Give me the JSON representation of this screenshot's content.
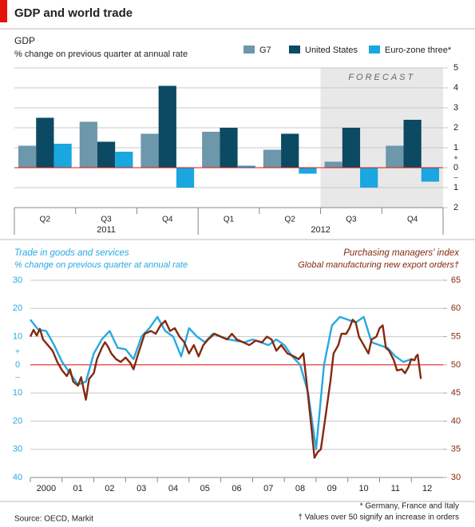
{
  "title": "GDP and world trade",
  "source": "Source: OECD, Markit",
  "footnotes": [
    "* Germany, France and Italy",
    "† Values over 50 signify an increase in orders"
  ],
  "chart_data": [
    {
      "type": "bar",
      "title": "GDP",
      "subtitle": "% change on previous quarter at annual rate",
      "categories": [
        "Q2",
        "Q3",
        "Q4",
        "Q1",
        "Q2",
        "Q3",
        "Q4"
      ],
      "year_labels": [
        "2011",
        "2012"
      ],
      "annotation": "FORECAST",
      "series": [
        {
          "name": "G7",
          "color": "#6d97ab",
          "values": [
            1.1,
            2.3,
            1.7,
            1.8,
            0.9,
            0.3,
            1.1
          ]
        },
        {
          "name": "United States",
          "color": "#0c4a63",
          "values": [
            2.5,
            1.3,
            4.1,
            2.0,
            1.7,
            2.0,
            2.4
          ]
        },
        {
          "name": "Euro-zone three*",
          "color": "#1aa6df",
          "values": [
            1.2,
            0.8,
            -1.0,
            0.1,
            -0.3,
            -1.0,
            -0.7
          ]
        }
      ],
      "ylim": [
        -2,
        5
      ],
      "yticks": [
        {
          "value": -2,
          "label": "2"
        },
        {
          "value": -1,
          "label": "1"
        },
        0,
        1,
        2,
        3,
        4,
        5
      ],
      "signs": [
        "+",
        "–"
      ],
      "grid": true
    },
    {
      "type": "line",
      "y_title": "% change on previous quarter at annual rate",
      "y2_title": "Global manufacturing new export orders†",
      "xlim": [
        2000,
        2013
      ],
      "xticks": [
        {
          "value": 2000,
          "label": "2000"
        },
        {
          "value": 2001,
          "label": "01"
        },
        {
          "value": 2002,
          "label": "02"
        },
        {
          "value": 2003,
          "label": "03"
        },
        {
          "value": 2004,
          "label": "04"
        },
        {
          "value": 2005,
          "label": "05"
        },
        {
          "value": 2006,
          "label": "06"
        },
        {
          "value": 2007,
          "label": "07"
        },
        {
          "value": 2008,
          "label": "08"
        },
        {
          "value": 2009,
          "label": "09"
        },
        {
          "value": 2010,
          "label": "10"
        },
        {
          "value": 2011,
          "label": "11"
        },
        {
          "value": 2012,
          "label": "12"
        }
      ],
      "ylim": [
        -40,
        30
      ],
      "yticks": [
        {
          "value": -40,
          "label": "40"
        },
        {
          "value": -30,
          "label": "30"
        },
        {
          "value": -20,
          "label": "20"
        },
        {
          "value": -10,
          "label": "10"
        },
        0,
        10,
        20,
        30
      ],
      "y2lim": [
        30,
        65
      ],
      "y2ticks": [
        30,
        35,
        40,
        45,
        50,
        55,
        60,
        65
      ],
      "signs": [
        "+",
        "–"
      ],
      "grid": true,
      "series": [
        {
          "name": "Trade in goods and services",
          "color": "#27a9e1",
          "x": [
            2000,
            2000.25,
            2000.5,
            2000.75,
            2001,
            2001.25,
            2001.5,
            2001.75,
            2002,
            2002.25,
            2002.5,
            2002.75,
            2003,
            2003.25,
            2003.5,
            2003.75,
            2004,
            2004.25,
            2004.5,
            2004.75,
            2005,
            2005.25,
            2005.5,
            2005.75,
            2006,
            2006.25,
            2006.5,
            2006.75,
            2007,
            2007.25,
            2007.5,
            2007.75,
            2008,
            2008.25,
            2008.5,
            2008.75,
            2009,
            2009.25,
            2009.5,
            2009.75,
            2010,
            2010.25,
            2010.5,
            2010.75,
            2011,
            2011.25,
            2011.5,
            2011.75,
            2012
          ],
          "values": [
            16,
            12.5,
            12,
            7,
            1,
            -3,
            -7,
            -6,
            4,
            9,
            12,
            6,
            5.5,
            2,
            10,
            13,
            17,
            12,
            10,
            3,
            13,
            10,
            8,
            11,
            10,
            9,
            8.5,
            8,
            9,
            8,
            7,
            9,
            7,
            3,
            0,
            -10,
            -30,
            0,
            14,
            17,
            16,
            15,
            17,
            8,
            7,
            6,
            3,
            1,
            2
          ]
        },
        {
          "name": "Purchasing managers' index",
          "color": "#84290f",
          "axis": "y2",
          "x": [
            2000,
            2000.1,
            2000.2,
            2000.3,
            2000.4,
            2000.55,
            2000.7,
            2000.85,
            2001,
            2001.15,
            2001.25,
            2001.35,
            2001.5,
            2001.6,
            2001.75,
            2001.85,
            2002,
            2002.1,
            2002.25,
            2002.35,
            2002.45,
            2002.55,
            2002.7,
            2002.85,
            2003,
            2003.15,
            2003.25,
            2003.4,
            2003.6,
            2003.8,
            2003.95,
            2004.1,
            2004.25,
            2004.4,
            2004.55,
            2004.7,
            2004.85,
            2005,
            2005.15,
            2005.3,
            2005.45,
            2005.6,
            2005.8,
            2006,
            2006.2,
            2006.35,
            2006.5,
            2006.7,
            2006.9,
            2007.1,
            2007.3,
            2007.45,
            2007.6,
            2007.75,
            2007.9,
            2008.1,
            2008.3,
            2008.45,
            2008.6,
            2008.7,
            2008.85,
            2008.95,
            2009.05,
            2009.15,
            2009.3,
            2009.45,
            2009.55,
            2009.7,
            2009.8,
            2009.95,
            2010.05,
            2010.15,
            2010.25,
            2010.35,
            2010.5,
            2010.65,
            2010.75,
            2010.9,
            2011,
            2011.1,
            2011.2,
            2011.3,
            2011.45,
            2011.55,
            2011.7,
            2011.8,
            2011.9,
            2012,
            2012.1,
            2012.15,
            2012.2,
            2012.3
          ],
          "values": [
            55.0,
            56.2,
            55.2,
            56.4,
            54.5,
            53.5,
            52.5,
            50.5,
            49.0,
            48.0,
            49.2,
            47.0,
            46.3,
            47.8,
            43.8,
            47.5,
            48.5,
            51.0,
            53.0,
            54.0,
            53.2,
            52.0,
            51.0,
            50.5,
            51.3,
            50.3,
            49.2,
            52.0,
            55.5,
            56.0,
            55.5,
            57.0,
            57.8,
            56.0,
            56.5,
            55.0,
            54.0,
            52.0,
            53.5,
            51.5,
            53.5,
            54.5,
            55.5,
            55.0,
            54.5,
            55.5,
            54.5,
            54.0,
            53.5,
            54.3,
            54.0,
            55.0,
            54.5,
            52.5,
            53.5,
            52.0,
            51.5,
            51.0,
            52.0,
            47.0,
            39.0,
            33.5,
            34.5,
            35.0,
            41.0,
            47.0,
            52.0,
            53.5,
            55.5,
            55.5,
            56.5,
            58.0,
            57.5,
            55.0,
            53.5,
            52.0,
            54.5,
            55.0,
            56.5,
            57.0,
            53.0,
            52.5,
            50.8,
            49.0,
            49.2,
            48.5,
            49.5,
            51.0,
            50.8,
            51.5,
            51.8,
            47.5
          ]
        }
      ]
    }
  ]
}
